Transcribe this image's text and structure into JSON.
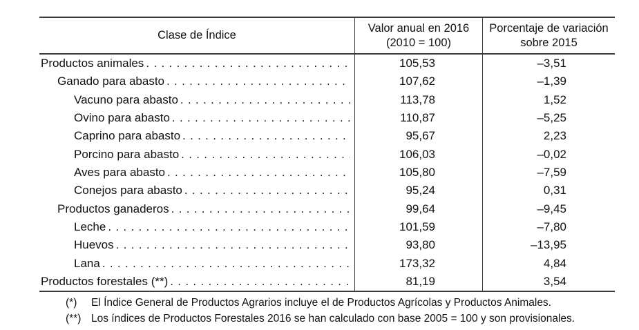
{
  "table": {
    "headers": {
      "col1": "Clase de Índice",
      "col2_line1": "Valor anual en 2016",
      "col2_line2": "(2010 = 100)",
      "col3_line1": "Porcentaje de variación",
      "col3_line2": "sobre 2015"
    },
    "rows": [
      {
        "label": "Productos animales",
        "indent": 0,
        "value": "105,53",
        "pct": "–3,51"
      },
      {
        "label": "Ganado para abasto",
        "indent": 1,
        "value": "107,62",
        "pct": "–1,39"
      },
      {
        "label": "Vacuno para abasto",
        "indent": 2,
        "value": "113,78",
        "pct": "1,52"
      },
      {
        "label": "Ovino para abasto",
        "indent": 2,
        "value": "110,87",
        "pct": "–5,25"
      },
      {
        "label": "Caprino para abasto",
        "indent": 2,
        "value": "95,67",
        "pct": "2,23"
      },
      {
        "label": "Porcino para abasto",
        "indent": 2,
        "value": "106,03",
        "pct": "–0,02"
      },
      {
        "label": "Aves para abasto",
        "indent": 2,
        "value": "105,80",
        "pct": "–7,59"
      },
      {
        "label": "Conejos para abasto",
        "indent": 2,
        "value": "95,24",
        "pct": "0,31"
      },
      {
        "label": "Productos ganaderos",
        "indent": 1,
        "value": "99,64",
        "pct": "–9,45"
      },
      {
        "label": "Leche",
        "indent": 2,
        "value": "101,59",
        "pct": "–7,80"
      },
      {
        "label": "Huevos",
        "indent": 2,
        "value": "93,80",
        "pct": "–13,95"
      },
      {
        "label": "Lana",
        "indent": 2,
        "value": "173,32",
        "pct": "4,84"
      },
      {
        "label": "Productos forestales (**)",
        "indent": 0,
        "value": "81,19",
        "pct": "3,54"
      }
    ]
  },
  "footnotes": [
    {
      "marker": "(*)",
      "text": "El Índice General de Productos Agrarios incluye el de Productos Agrícolas y Productos Animales."
    },
    {
      "marker": "(**)",
      "text": "Los índices de Productos Forestales 2016 se han calculado con base 2005 = 100 y son provisionales."
    }
  ]
}
